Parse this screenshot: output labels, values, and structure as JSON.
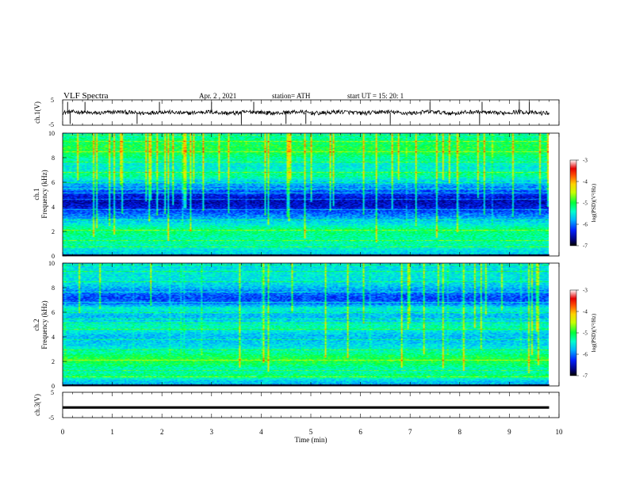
{
  "header": {
    "title": "VLF  Spectra",
    "date": "Apr. 2   , 2021",
    "station": "station= ATH",
    "start_ut": "start  UT  =    15: 20: 1"
  },
  "chart_data": [
    {
      "type": "line",
      "panel": "ch1-waveform",
      "ylabel": "ch.1(V)",
      "ylim": [
        -5,
        5
      ],
      "yticks": [
        "5",
        "-5"
      ],
      "xlim": [
        0,
        10
      ],
      "baseline": 0,
      "spike_times": [
        0.1,
        0.15,
        0.45,
        1.5,
        1.95,
        3.0,
        3.6,
        3.85,
        4.5,
        4.9,
        6.6,
        7.4,
        8.4,
        8.45,
        9.2,
        9.4
      ]
    },
    {
      "type": "heatmap",
      "panel": "ch1-spectrogram",
      "ylabel": "ch.1",
      "ylabel2": "Frequency  (kHz)",
      "ylim": [
        0,
        10
      ],
      "yticks": [
        "0",
        "2",
        "4",
        "6",
        "8",
        "10"
      ],
      "xlim": [
        0,
        10
      ],
      "data_end_min": 9.8,
      "colorbar": {
        "label": "log(PSD)(V²/Hz)",
        "ticks": [
          "-3",
          "-4",
          "-5",
          "-6",
          "-7"
        ],
        "range": [
          -7,
          -3
        ]
      }
    },
    {
      "type": "heatmap",
      "panel": "ch2-spectrogram",
      "ylabel": "ch.2",
      "ylabel2": "Frequency  (kHz)",
      "ylim": [
        0,
        10
      ],
      "yticks": [
        "0",
        "2",
        "4",
        "6",
        "8",
        "10"
      ],
      "xlim": [
        0,
        10
      ],
      "data_end_min": 9.8,
      "colorbar": {
        "label": "log(PSD)(V²/Hz)",
        "ticks": [
          "-3",
          "-4",
          "-5",
          "-6",
          "-7"
        ],
        "range": [
          -7,
          -3
        ]
      }
    },
    {
      "type": "line",
      "panel": "ch3-waveform",
      "ylabel": "ch.3(V)",
      "ylim": [
        -5,
        5
      ],
      "yticks": [
        "5",
        "-5"
      ],
      "xlim": [
        0,
        10
      ],
      "baseline": -1,
      "xlabel": "Time  (min)",
      "xticks": [
        "0",
        "1",
        "2",
        "3",
        "4",
        "5",
        "6",
        "7",
        "8",
        "9",
        "10"
      ]
    }
  ]
}
